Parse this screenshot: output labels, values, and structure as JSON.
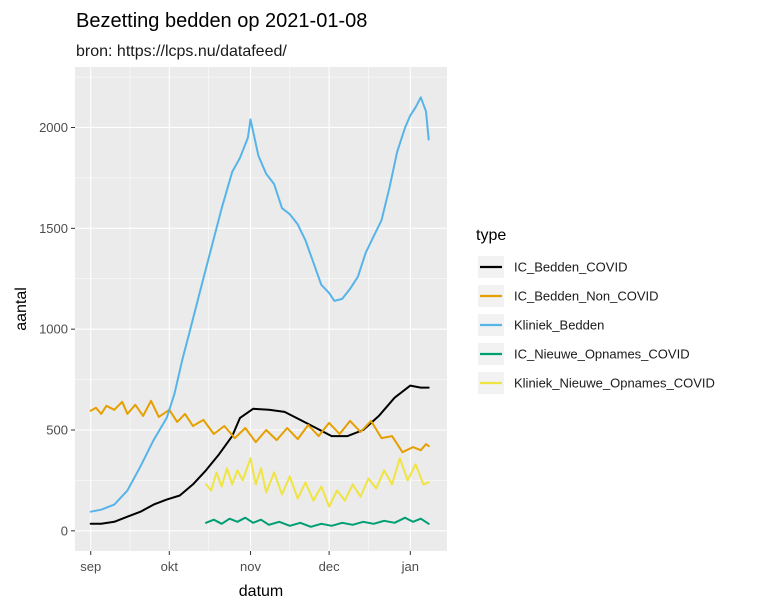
{
  "chart_data": {
    "type": "line",
    "title": "Bezetting bedden op 2021-01-08",
    "subtitle": "bron: https://lcps.nu/datafeed/",
    "xlabel": "datum",
    "ylabel": "aantal",
    "x_ticks": [
      {
        "date": "2020-09-01",
        "label": "sep"
      },
      {
        "date": "2020-10-01",
        "label": "okt"
      },
      {
        "date": "2020-11-01",
        "label": "nov"
      },
      {
        "date": "2020-12-01",
        "label": "dec"
      },
      {
        "date": "2021-01-01",
        "label": "jan"
      }
    ],
    "xlim": [
      "2020-08-26",
      "2021-01-15"
    ],
    "y_ticks": [
      0,
      500,
      1000,
      1500,
      2000
    ],
    "ylim": [
      -100,
      2300
    ],
    "grid": true,
    "legend": {
      "title": "type",
      "position": "right"
    },
    "series": [
      {
        "name": "IC_Bedden_COVID",
        "color": "#000000",
        "points": [
          [
            "2020-09-01",
            35
          ],
          [
            "2020-09-05",
            35
          ],
          [
            "2020-09-10",
            45
          ],
          [
            "2020-09-15",
            70
          ],
          [
            "2020-09-20",
            95
          ],
          [
            "2020-09-25",
            130
          ],
          [
            "2020-09-30",
            155
          ],
          [
            "2020-10-05",
            175
          ],
          [
            "2020-10-10",
            230
          ],
          [
            "2020-10-15",
            300
          ],
          [
            "2020-10-20",
            380
          ],
          [
            "2020-10-25",
            470
          ],
          [
            "2020-10-28",
            560
          ],
          [
            "2020-11-02",
            605
          ],
          [
            "2020-11-08",
            600
          ],
          [
            "2020-11-14",
            590
          ],
          [
            "2020-11-20",
            550
          ],
          [
            "2020-11-26",
            510
          ],
          [
            "2020-12-02",
            470
          ],
          [
            "2020-12-08",
            470
          ],
          [
            "2020-12-14",
            500
          ],
          [
            "2020-12-20",
            570
          ],
          [
            "2020-12-26",
            660
          ],
          [
            "2021-01-01",
            720
          ],
          [
            "2021-01-05",
            710
          ],
          [
            "2021-01-08",
            710
          ]
        ]
      },
      {
        "name": "IC_Bedden_Non_COVID",
        "color": "#E69F00",
        "points": [
          [
            "2020-09-01",
            595
          ],
          [
            "2020-09-03",
            610
          ],
          [
            "2020-09-05",
            580
          ],
          [
            "2020-09-07",
            620
          ],
          [
            "2020-09-10",
            600
          ],
          [
            "2020-09-13",
            640
          ],
          [
            "2020-09-15",
            580
          ],
          [
            "2020-09-18",
            625
          ],
          [
            "2020-09-21",
            570
          ],
          [
            "2020-09-24",
            645
          ],
          [
            "2020-09-27",
            565
          ],
          [
            "2020-10-01",
            600
          ],
          [
            "2020-10-04",
            540
          ],
          [
            "2020-10-07",
            580
          ],
          [
            "2020-10-10",
            520
          ],
          [
            "2020-10-14",
            550
          ],
          [
            "2020-10-18",
            480
          ],
          [
            "2020-10-22",
            520
          ],
          [
            "2020-10-26",
            460
          ],
          [
            "2020-10-30",
            510
          ],
          [
            "2020-11-03",
            440
          ],
          [
            "2020-11-07",
            500
          ],
          [
            "2020-11-11",
            450
          ],
          [
            "2020-11-15",
            510
          ],
          [
            "2020-11-19",
            455
          ],
          [
            "2020-11-23",
            525
          ],
          [
            "2020-11-27",
            470
          ],
          [
            "2020-12-01",
            535
          ],
          [
            "2020-12-05",
            480
          ],
          [
            "2020-12-09",
            545
          ],
          [
            "2020-12-13",
            490
          ],
          [
            "2020-12-17",
            545
          ],
          [
            "2020-12-21",
            460
          ],
          [
            "2020-12-25",
            470
          ],
          [
            "2020-12-29",
            390
          ],
          [
            "2021-01-02",
            415
          ],
          [
            "2021-01-05",
            400
          ],
          [
            "2021-01-07",
            430
          ],
          [
            "2021-01-08",
            420
          ]
        ]
      },
      {
        "name": "Kliniek_Bedden",
        "color": "#56B4E9",
        "points": [
          [
            "2020-09-01",
            95
          ],
          [
            "2020-09-05",
            105
          ],
          [
            "2020-09-10",
            130
          ],
          [
            "2020-09-15",
            200
          ],
          [
            "2020-09-20",
            320
          ],
          [
            "2020-09-25",
            450
          ],
          [
            "2020-09-30",
            560
          ],
          [
            "2020-10-03",
            680
          ],
          [
            "2020-10-06",
            850
          ],
          [
            "2020-10-09",
            1000
          ],
          [
            "2020-10-13",
            1200
          ],
          [
            "2020-10-17",
            1400
          ],
          [
            "2020-10-21",
            1600
          ],
          [
            "2020-10-25",
            1780
          ],
          [
            "2020-10-28",
            1850
          ],
          [
            "2020-10-31",
            1950
          ],
          [
            "2020-11-01",
            2040
          ],
          [
            "2020-11-04",
            1860
          ],
          [
            "2020-11-07",
            1770
          ],
          [
            "2020-11-10",
            1720
          ],
          [
            "2020-11-13",
            1600
          ],
          [
            "2020-11-16",
            1570
          ],
          [
            "2020-11-19",
            1520
          ],
          [
            "2020-11-22",
            1440
          ],
          [
            "2020-11-25",
            1330
          ],
          [
            "2020-11-28",
            1220
          ],
          [
            "2020-12-01",
            1180
          ],
          [
            "2020-12-03",
            1140
          ],
          [
            "2020-12-06",
            1150
          ],
          [
            "2020-12-09",
            1200
          ],
          [
            "2020-12-12",
            1260
          ],
          [
            "2020-12-15",
            1380
          ],
          [
            "2020-12-18",
            1460
          ],
          [
            "2020-12-21",
            1540
          ],
          [
            "2020-12-24",
            1700
          ],
          [
            "2020-12-27",
            1880
          ],
          [
            "2020-12-30",
            2000
          ],
          [
            "2021-01-01",
            2060
          ],
          [
            "2021-01-03",
            2100
          ],
          [
            "2021-01-05",
            2150
          ],
          [
            "2021-01-07",
            2080
          ],
          [
            "2021-01-08",
            1940
          ]
        ]
      },
      {
        "name": "IC_Nieuwe_Opnames_COVID",
        "color": "#009E73",
        "points": [
          [
            "2020-10-15",
            40
          ],
          [
            "2020-10-18",
            55
          ],
          [
            "2020-10-21",
            35
          ],
          [
            "2020-10-24",
            60
          ],
          [
            "2020-10-27",
            45
          ],
          [
            "2020-10-30",
            65
          ],
          [
            "2020-11-02",
            40
          ],
          [
            "2020-11-05",
            55
          ],
          [
            "2020-11-08",
            30
          ],
          [
            "2020-11-12",
            45
          ],
          [
            "2020-11-16",
            25
          ],
          [
            "2020-11-20",
            40
          ],
          [
            "2020-11-24",
            20
          ],
          [
            "2020-11-28",
            35
          ],
          [
            "2020-12-02",
            25
          ],
          [
            "2020-12-06",
            40
          ],
          [
            "2020-12-10",
            30
          ],
          [
            "2020-12-14",
            45
          ],
          [
            "2020-12-18",
            35
          ],
          [
            "2020-12-22",
            50
          ],
          [
            "2020-12-26",
            40
          ],
          [
            "2020-12-30",
            65
          ],
          [
            "2021-01-02",
            45
          ],
          [
            "2021-01-05",
            60
          ],
          [
            "2021-01-08",
            35
          ]
        ]
      },
      {
        "name": "Kliniek_Nieuwe_Opnames_COVID",
        "color": "#F0E442",
        "points": [
          [
            "2020-10-15",
            230
          ],
          [
            "2020-10-17",
            200
          ],
          [
            "2020-10-19",
            290
          ],
          [
            "2020-10-21",
            220
          ],
          [
            "2020-10-23",
            310
          ],
          [
            "2020-10-25",
            230
          ],
          [
            "2020-10-27",
            300
          ],
          [
            "2020-10-29",
            250
          ],
          [
            "2020-11-01",
            360
          ],
          [
            "2020-11-03",
            230
          ],
          [
            "2020-11-05",
            310
          ],
          [
            "2020-11-07",
            190
          ],
          [
            "2020-11-10",
            290
          ],
          [
            "2020-11-13",
            180
          ],
          [
            "2020-11-16",
            270
          ],
          [
            "2020-11-19",
            160
          ],
          [
            "2020-11-22",
            240
          ],
          [
            "2020-11-25",
            150
          ],
          [
            "2020-11-28",
            220
          ],
          [
            "2020-12-01",
            120
          ],
          [
            "2020-12-04",
            200
          ],
          [
            "2020-12-07",
            150
          ],
          [
            "2020-12-10",
            230
          ],
          [
            "2020-12-13",
            170
          ],
          [
            "2020-12-16",
            260
          ],
          [
            "2020-12-19",
            210
          ],
          [
            "2020-12-22",
            300
          ],
          [
            "2020-12-25",
            230
          ],
          [
            "2020-12-28",
            360
          ],
          [
            "2020-12-31",
            250
          ],
          [
            "2021-01-03",
            330
          ],
          [
            "2021-01-06",
            230
          ],
          [
            "2021-01-08",
            240
          ]
        ]
      }
    ]
  }
}
